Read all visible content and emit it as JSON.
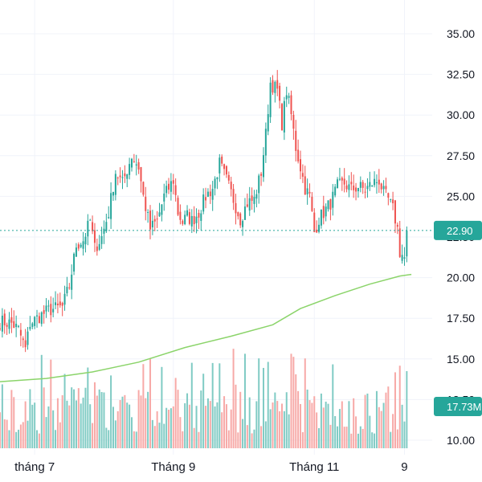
{
  "chart_data": {
    "type": "candlestick",
    "y_axis": {
      "position": "right",
      "ticks": [
        "35.00",
        "32.50",
        "30.00",
        "27.50",
        "25.00",
        "22.50",
        "20.00",
        "17.50",
        "15.00",
        "12.50",
        "10.00"
      ],
      "tick_values": [
        35,
        32.5,
        30,
        27.5,
        25,
        22.5,
        20,
        17.5,
        15,
        12.5,
        10
      ],
      "range": [
        9.5,
        36.5
      ]
    },
    "x_axis": {
      "labels": [
        {
          "text": "tháng 7",
          "day": 0
        },
        {
          "text": "Tháng 9",
          "day": 60
        },
        {
          "text": "Tháng 11",
          "day": 121
        },
        {
          "text": "9",
          "day": 160
        }
      ],
      "day_range": [
        -15,
        172
      ]
    },
    "current_price": {
      "label": "22.90",
      "value": 22.9,
      "color": "#26a69a"
    },
    "volume_label": {
      "label": "17.73M",
      "color": "#26a69a"
    },
    "colors": {
      "up": "#26a69a",
      "down": "#ef5350",
      "ma": "#8bd46a",
      "volume_up": "#80cbc4",
      "volume_down": "#f7a9a7",
      "grid": "#f0f3fa",
      "dotted": "#26a69a",
      "axis_text": "#131722"
    },
    "ma_line": [
      [
        -15,
        13.6
      ],
      [
        5,
        13.8
      ],
      [
        25,
        14.2
      ],
      [
        45,
        14.8
      ],
      [
        65,
        15.7
      ],
      [
        85,
        16.4
      ],
      [
        103,
        17.1
      ],
      [
        115,
        18.1
      ],
      [
        130,
        18.9
      ],
      [
        145,
        19.6
      ],
      [
        158,
        20.1
      ],
      [
        163,
        20.2
      ]
    ],
    "anchors": [
      [
        -15,
        17.3
      ],
      [
        -10,
        17.2
      ],
      [
        -7,
        16.8
      ],
      [
        -4,
        15.6
      ],
      [
        -2,
        17.2
      ],
      [
        2,
        17.6
      ],
      [
        6,
        18.0
      ],
      [
        9,
        18.1
      ],
      [
        12,
        18.2
      ],
      [
        15,
        19.5
      ],
      [
        18,
        22.0
      ],
      [
        21,
        22.3
      ],
      [
        24,
        23.5
      ],
      [
        26,
        21.8
      ],
      [
        29,
        22.5
      ],
      [
        32,
        24.0
      ],
      [
        35,
        26.5
      ],
      [
        38,
        25.8
      ],
      [
        42,
        27.5
      ],
      [
        45,
        26.8
      ],
      [
        47,
        25.0
      ],
      [
        50,
        23.0
      ],
      [
        53,
        23.5
      ],
      [
        56,
        25.0
      ],
      [
        60,
        26.0
      ],
      [
        62,
        24.0
      ],
      [
        64,
        23.4
      ],
      [
        66,
        23.8
      ],
      [
        68,
        23.5
      ],
      [
        71,
        24.0
      ],
      [
        74,
        25.0
      ],
      [
        77,
        25.5
      ],
      [
        80,
        27.0
      ],
      [
        83,
        26.0
      ],
      [
        86,
        24.8
      ],
      [
        89,
        23.6
      ],
      [
        92,
        24.6
      ],
      [
        95,
        24.8
      ],
      [
        98,
        26.5
      ],
      [
        100,
        28.8
      ],
      [
        102,
        32.0
      ],
      [
        105,
        31.5
      ],
      [
        107,
        29.5
      ],
      [
        109,
        31.5
      ],
      [
        111,
        30.0
      ],
      [
        113,
        28.0
      ],
      [
        115,
        26.8
      ],
      [
        117,
        25.5
      ],
      [
        119,
        25.0
      ],
      [
        121,
        22.8
      ],
      [
        123,
        23.6
      ],
      [
        125,
        24.0
      ],
      [
        128,
        24.6
      ],
      [
        131,
        25.6
      ],
      [
        134,
        25.8
      ],
      [
        137,
        25.4
      ],
      [
        140,
        25.6
      ],
      [
        143,
        25.4
      ],
      [
        146,
        25.8
      ],
      [
        149,
        26.0
      ],
      [
        151,
        25.2
      ],
      [
        153,
        24.8
      ],
      [
        155,
        24.2
      ],
      [
        157,
        23.0
      ],
      [
        158,
        21.6
      ],
      [
        160,
        21.2
      ],
      [
        161,
        22.9
      ]
    ],
    "seed": 7
  }
}
